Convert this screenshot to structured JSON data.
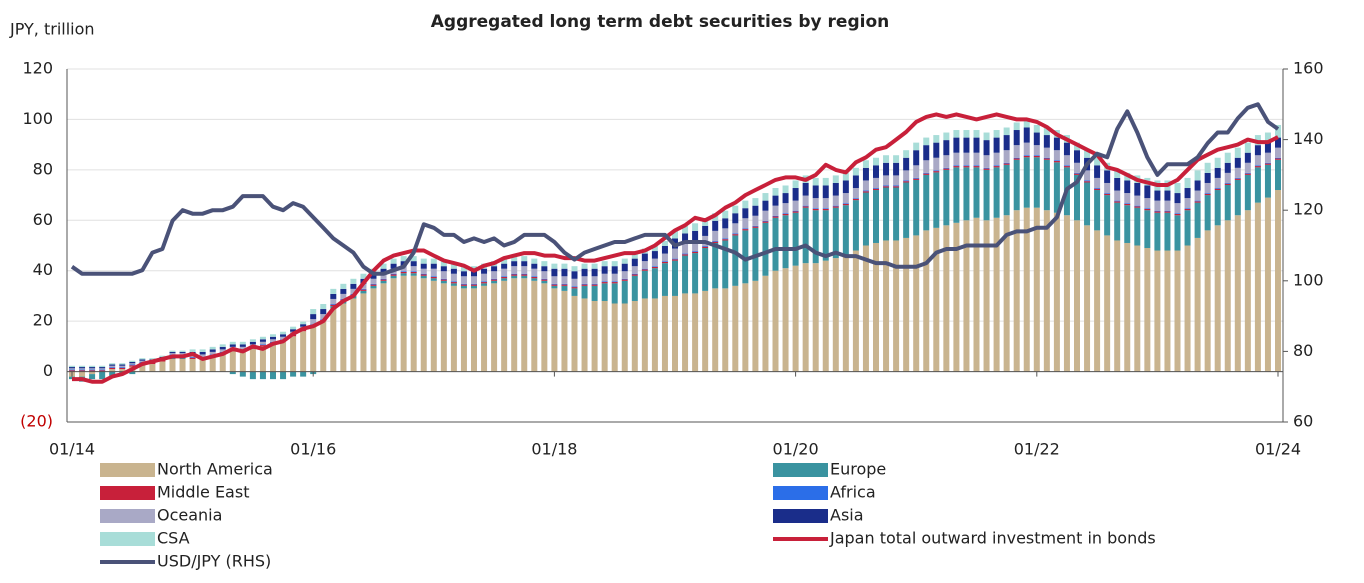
{
  "chart_data": {
    "type": "stacked-bar-line",
    "title": "Aggregated long term debt securities by region",
    "y_axis_label": "JPY, trillion",
    "categories": [
      "01/14",
      null,
      null,
      null,
      null,
      null,
      null,
      null,
      null,
      null,
      null,
      null,
      null,
      null,
      null,
      null,
      null,
      null,
      null,
      null,
      null,
      null,
      null,
      null,
      "01/16",
      null,
      null,
      null,
      null,
      null,
      null,
      null,
      null,
      null,
      null,
      null,
      null,
      null,
      null,
      null,
      null,
      null,
      null,
      null,
      null,
      null,
      null,
      null,
      "01/18",
      null,
      null,
      null,
      null,
      null,
      null,
      null,
      null,
      null,
      null,
      null,
      null,
      null,
      null,
      null,
      null,
      null,
      null,
      null,
      null,
      null,
      null,
      null,
      "01/20",
      null,
      null,
      null,
      null,
      null,
      null,
      null,
      null,
      null,
      null,
      null,
      null,
      null,
      null,
      null,
      null,
      null,
      null,
      null,
      null,
      null,
      null,
      null,
      "01/22",
      null,
      null,
      null,
      null,
      null,
      null,
      null,
      null,
      null,
      null,
      null,
      null,
      null,
      null,
      null,
      null,
      null,
      null,
      null,
      null,
      null,
      null,
      null,
      "01/24"
    ],
    "ylim": [
      -20,
      120
    ],
    "yticks": [
      {
        "value": -20,
        "label": "(20)"
      },
      0,
      20,
      40,
      60,
      80,
      100,
      120
    ],
    "negative_label_color": "#c00000",
    "y2lim": [
      60,
      160
    ],
    "y2ticks": [
      60,
      80,
      100,
      120,
      140,
      160
    ],
    "grid": true,
    "series": [
      {
        "name": "North America",
        "kind": "bar",
        "color": "#c9b48f",
        "values": [
          -2,
          -2,
          -1,
          0,
          1,
          1,
          2,
          3,
          3,
          4,
          5,
          5,
          5,
          5,
          6,
          7,
          8,
          8,
          9,
          10,
          11,
          12,
          14,
          16,
          18,
          20,
          25,
          27,
          29,
          31,
          33,
          35,
          37,
          38,
          38,
          37,
          36,
          35,
          34,
          33,
          33,
          34,
          35,
          36,
          37,
          37,
          36,
          35,
          33,
          32,
          30,
          29,
          28,
          28,
          27,
          27,
          28,
          29,
          29,
          30,
          30,
          31,
          31,
          32,
          33,
          33,
          34,
          35,
          36,
          38,
          40,
          41,
          42,
          43,
          43,
          44,
          45,
          46,
          48,
          50,
          51,
          52,
          52,
          53,
          54,
          56,
          57,
          58,
          59,
          60,
          61,
          60,
          61,
          62,
          64,
          65,
          65,
          64,
          63,
          62,
          60,
          58,
          56,
          54,
          52,
          51,
          50,
          49,
          48,
          48,
          48,
          50,
          53,
          56,
          58,
          60,
          62,
          64,
          67,
          69,
          72
        ]
      },
      {
        "name": "Europe",
        "kind": "bar",
        "color": "#3a93a0",
        "values": [
          -1,
          -2,
          -2,
          -3,
          -2,
          -1,
          -1,
          0,
          0,
          0,
          1,
          1,
          0,
          0,
          0,
          0,
          -1,
          -2,
          -3,
          -3,
          -3,
          -3,
          -2,
          -2,
          -1,
          0,
          1,
          1,
          1,
          1,
          1,
          1,
          1,
          1,
          1,
          1,
          1,
          1,
          1,
          1,
          1,
          1,
          1,
          1,
          1,
          1,
          1,
          1,
          1,
          2,
          3,
          5,
          6,
          7,
          8,
          9,
          10,
          11,
          12,
          13,
          14,
          15,
          16,
          17,
          18,
          19,
          20,
          21,
          21,
          21,
          21,
          21,
          21,
          22,
          21,
          20,
          20,
          20,
          20,
          21,
          21,
          21,
          21,
          22,
          22,
          22,
          22,
          22,
          22,
          21,
          20,
          20,
          20,
          20,
          20,
          20,
          20,
          20,
          20,
          19,
          18,
          17,
          16,
          16,
          15,
          15,
          15,
          15,
          15,
          15,
          14,
          14,
          14,
          14,
          14,
          14,
          14,
          14,
          14,
          13,
          12
        ]
      },
      {
        "name": "Middle East",
        "kind": "bar",
        "color": "#c8203a",
        "values": [
          0.5,
          0.5,
          0.5,
          0.5,
          0.5,
          0.5,
          0.5,
          0.5,
          0.5,
          0.5,
          0.5,
          0.5,
          0.5,
          0.5,
          0.5,
          0.5,
          0.5,
          0.5,
          0.5,
          0.5,
          0.5,
          0.5,
          0.5,
          0.5,
          0.5,
          0.5,
          0.5,
          0.5,
          0.5,
          0.5,
          0.5,
          0.5,
          0.5,
          0.5,
          0.5,
          0.5,
          0.5,
          0.5,
          0.5,
          0.5,
          0.5,
          0.5,
          0.5,
          0.5,
          0.5,
          0.5,
          0.5,
          0.5,
          0.5,
          0.5,
          0.5,
          0.5,
          0.5,
          0.5,
          0.5,
          0.5,
          0.5,
          0.5,
          0.5,
          0.5,
          0.5,
          0.5,
          0.5,
          0.5,
          0.5,
          0.5,
          0.5,
          0.5,
          0.5,
          0.5,
          0.5,
          0.5,
          0.5,
          0.5,
          0.5,
          0.5,
          0.5,
          0.5,
          0.5,
          0.5,
          0.5,
          0.5,
          0.5,
          0.5,
          0.5,
          0.5,
          0.5,
          0.5,
          0.5,
          0.5,
          0.5,
          0.5,
          0.5,
          0.5,
          0.5,
          0.5,
          0.5,
          0.5,
          0.5,
          0.5,
          0.5,
          0.5,
          0.5,
          0.5,
          0.5,
          0.5,
          0.5,
          0.5,
          0.5,
          0.5,
          0.5,
          0.5,
          0.5,
          0.5,
          0.5,
          0.5,
          0.5,
          0.5,
          0.5,
          0.5,
          0.5
        ]
      },
      {
        "name": "Africa",
        "kind": "bar",
        "color": "#2b6ee8",
        "values": [
          0.3,
          0.3,
          0.3,
          0.3,
          0.3,
          0.3,
          0.3,
          0.3,
          0.3,
          0.3,
          0.3,
          0.3,
          0.3,
          0.3,
          0.3,
          0.3,
          0.3,
          0.3,
          0.3,
          0.3,
          0.3,
          0.3,
          0.3,
          0.3,
          0.3,
          0.3,
          0.3,
          0.3,
          0.3,
          0.3,
          0.3,
          0.3,
          0.3,
          0.3,
          0.3,
          0.3,
          0.3,
          0.3,
          0.3,
          0.3,
          0.3,
          0.3,
          0.3,
          0.3,
          0.3,
          0.3,
          0.3,
          0.3,
          0.3,
          0.3,
          0.3,
          0.3,
          0.3,
          0.3,
          0.3,
          0.3,
          0.3,
          0.3,
          0.3,
          0.3,
          0.3,
          0.3,
          0.3,
          0.3,
          0.3,
          0.3,
          0.3,
          0.3,
          0.3,
          0.3,
          0.3,
          0.3,
          0.3,
          0.3,
          0.3,
          0.3,
          0.3,
          0.3,
          0.3,
          0.3,
          0.3,
          0.3,
          0.3,
          0.3,
          0.3,
          0.3,
          0.3,
          0.3,
          0.3,
          0.3,
          0.3,
          0.3,
          0.3,
          0.3,
          0.3,
          0.3,
          0.3,
          0.3,
          0.3,
          0.3,
          0.3,
          0.3,
          0.3,
          0.3,
          0.3,
          0.3,
          0.3,
          0.3,
          0.3,
          0.3,
          0.3,
          0.3,
          0.3,
          0.3,
          0.3,
          0.3,
          0.3,
          0.3,
          0.3,
          0.3,
          0.3
        ]
      },
      {
        "name": "Oceania",
        "kind": "bar",
        "color": "#a9a9c6",
        "values": [
          0.5,
          0.5,
          0.5,
          0.5,
          0.5,
          0.5,
          0.5,
          0.5,
          0.5,
          0.5,
          0.5,
          0.5,
          1,
          1,
          1,
          1,
          1,
          1,
          1,
          1,
          1,
          1,
          1,
          1,
          2,
          2,
          2,
          2,
          2,
          2,
          2,
          2,
          2,
          2,
          2,
          2,
          3,
          3,
          3,
          3,
          3,
          3,
          3,
          3,
          3,
          3,
          3,
          3,
          3,
          3,
          3,
          3,
          3,
          3,
          3,
          3,
          3,
          3,
          3,
          3,
          4,
          4,
          4,
          4,
          4,
          4,
          4,
          4,
          4,
          4,
          4,
          4,
          4,
          4,
          4,
          4,
          4,
          4,
          4,
          4,
          4,
          4,
          4,
          4,
          5,
          5,
          5,
          5,
          5,
          5,
          5,
          5,
          5,
          5,
          5,
          5,
          4,
          4,
          4,
          4,
          4,
          4,
          4,
          4,
          4,
          4,
          4,
          4,
          4,
          4,
          4,
          4,
          4,
          4,
          4,
          4,
          4,
          4,
          4,
          4,
          4
        ]
      },
      {
        "name": "Asia",
        "kind": "bar",
        "color": "#1a2d8a",
        "values": [
          0.5,
          0.5,
          0.5,
          0.5,
          0.5,
          0.5,
          0.5,
          0.5,
          0.5,
          0.5,
          0.5,
          0.5,
          1,
          1,
          1,
          1,
          1,
          1,
          1,
          1,
          1,
          1,
          1,
          1,
          2,
          2,
          2,
          2,
          2,
          2,
          2,
          2,
          2,
          2,
          2,
          2,
          2,
          2,
          2,
          2,
          2,
          2,
          2,
          2,
          2,
          2,
          2,
          2,
          3,
          3,
          3,
          3,
          3,
          3,
          3,
          3,
          3,
          3,
          3,
          3,
          4,
          4,
          4,
          4,
          4,
          4,
          4,
          4,
          4,
          4,
          4,
          4,
          5,
          5,
          5,
          5,
          5,
          5,
          5,
          5,
          5,
          5,
          5,
          5,
          6,
          6,
          6,
          6,
          6,
          6,
          6,
          6,
          6,
          6,
          6,
          6,
          5,
          5,
          5,
          5,
          5,
          5,
          5,
          5,
          5,
          5,
          5,
          5,
          4,
          4,
          4,
          4,
          4,
          4,
          4,
          4,
          4,
          4,
          4,
          4,
          4
        ]
      },
      {
        "name": "CSA",
        "kind": "bar",
        "color": "#a8ddd8",
        "values": [
          0.5,
          0.5,
          0.5,
          0.5,
          0.5,
          0.5,
          0.5,
          0.5,
          0.5,
          0.5,
          0.5,
          0.5,
          1,
          1,
          1,
          1,
          1,
          1,
          1,
          1,
          1,
          1,
          1,
          1,
          2,
          2,
          2,
          2,
          2,
          2,
          2,
          2,
          2,
          2,
          2,
          2,
          2,
          2,
          2,
          2,
          2,
          2,
          2,
          2,
          2,
          2,
          2,
          2,
          2,
          2,
          2,
          2,
          2,
          2,
          2,
          2,
          2,
          2,
          2,
          2,
          3,
          3,
          3,
          3,
          3,
          3,
          3,
          3,
          3,
          3,
          3,
          3,
          3,
          3,
          3,
          3,
          3,
          3,
          3,
          3,
          3,
          3,
          3,
          3,
          3,
          3,
          3,
          3,
          3,
          3,
          3,
          3,
          3,
          3,
          3,
          3,
          3,
          3,
          3,
          3,
          3,
          3,
          3,
          3,
          3,
          3,
          3,
          3,
          4,
          4,
          4,
          4,
          4,
          4,
          4,
          4,
          4,
          4,
          4,
          4,
          5
        ]
      },
      {
        "name": "Japan total outward investment in bonds",
        "kind": "line",
        "color": "#c8203a",
        "values": [
          -3,
          -3,
          -4,
          -4,
          -2,
          -1,
          1,
          3,
          4,
          5,
          6,
          6,
          7,
          5,
          6,
          7,
          9,
          8,
          10,
          9,
          11,
          12,
          15,
          17,
          18,
          20,
          25,
          28,
          30,
          35,
          40,
          44,
          46,
          47,
          48,
          48,
          46,
          44,
          43,
          42,
          40,
          42,
          43,
          45,
          46,
          47,
          47,
          46,
          46,
          45,
          45,
          44,
          44,
          45,
          46,
          47,
          47,
          48,
          50,
          53,
          56,
          58,
          61,
          60,
          62,
          65,
          67,
          70,
          72,
          74,
          76,
          77,
          77,
          76,
          78,
          82,
          80,
          79,
          83,
          85,
          88,
          89,
          92,
          95,
          99,
          101,
          102,
          101,
          102,
          101,
          100,
          101,
          102,
          101,
          100,
          100,
          99,
          97,
          94,
          92,
          90,
          88,
          86,
          81,
          80,
          78,
          76,
          75,
          74,
          74,
          76,
          80,
          84,
          86,
          88,
          89,
          90,
          92,
          91,
          91,
          93
        ]
      },
      {
        "name": "USD/JPY (RHS)",
        "kind": "line",
        "axis": "y2",
        "color": "#4a5278",
        "values": [
          104,
          102,
          102,
          102,
          102,
          102,
          102,
          103,
          108,
          109,
          117,
          120,
          119,
          119,
          120,
          120,
          121,
          124,
          124,
          124,
          121,
          120,
          122,
          121,
          118,
          115,
          112,
          110,
          108,
          104,
          102,
          102,
          103,
          104,
          108,
          116,
          115,
          113,
          113,
          111,
          112,
          111,
          112,
          110,
          111,
          113,
          113,
          113,
          111,
          108,
          106,
          108,
          109,
          110,
          111,
          111,
          112,
          113,
          113,
          113,
          110,
          111,
          111,
          111,
          110,
          109,
          108,
          106,
          107,
          108,
          109,
          109,
          109,
          110,
          108,
          107,
          108,
          107,
          107,
          106,
          105,
          105,
          104,
          104,
          104,
          105,
          108,
          109,
          109,
          110,
          110,
          110,
          110,
          113,
          114,
          114,
          115,
          115,
          118,
          126,
          128,
          133,
          136,
          135,
          143,
          148,
          142,
          135,
          130,
          133,
          133,
          133,
          135,
          139,
          142,
          142,
          146,
          149,
          150,
          145,
          143
        ]
      }
    ]
  }
}
